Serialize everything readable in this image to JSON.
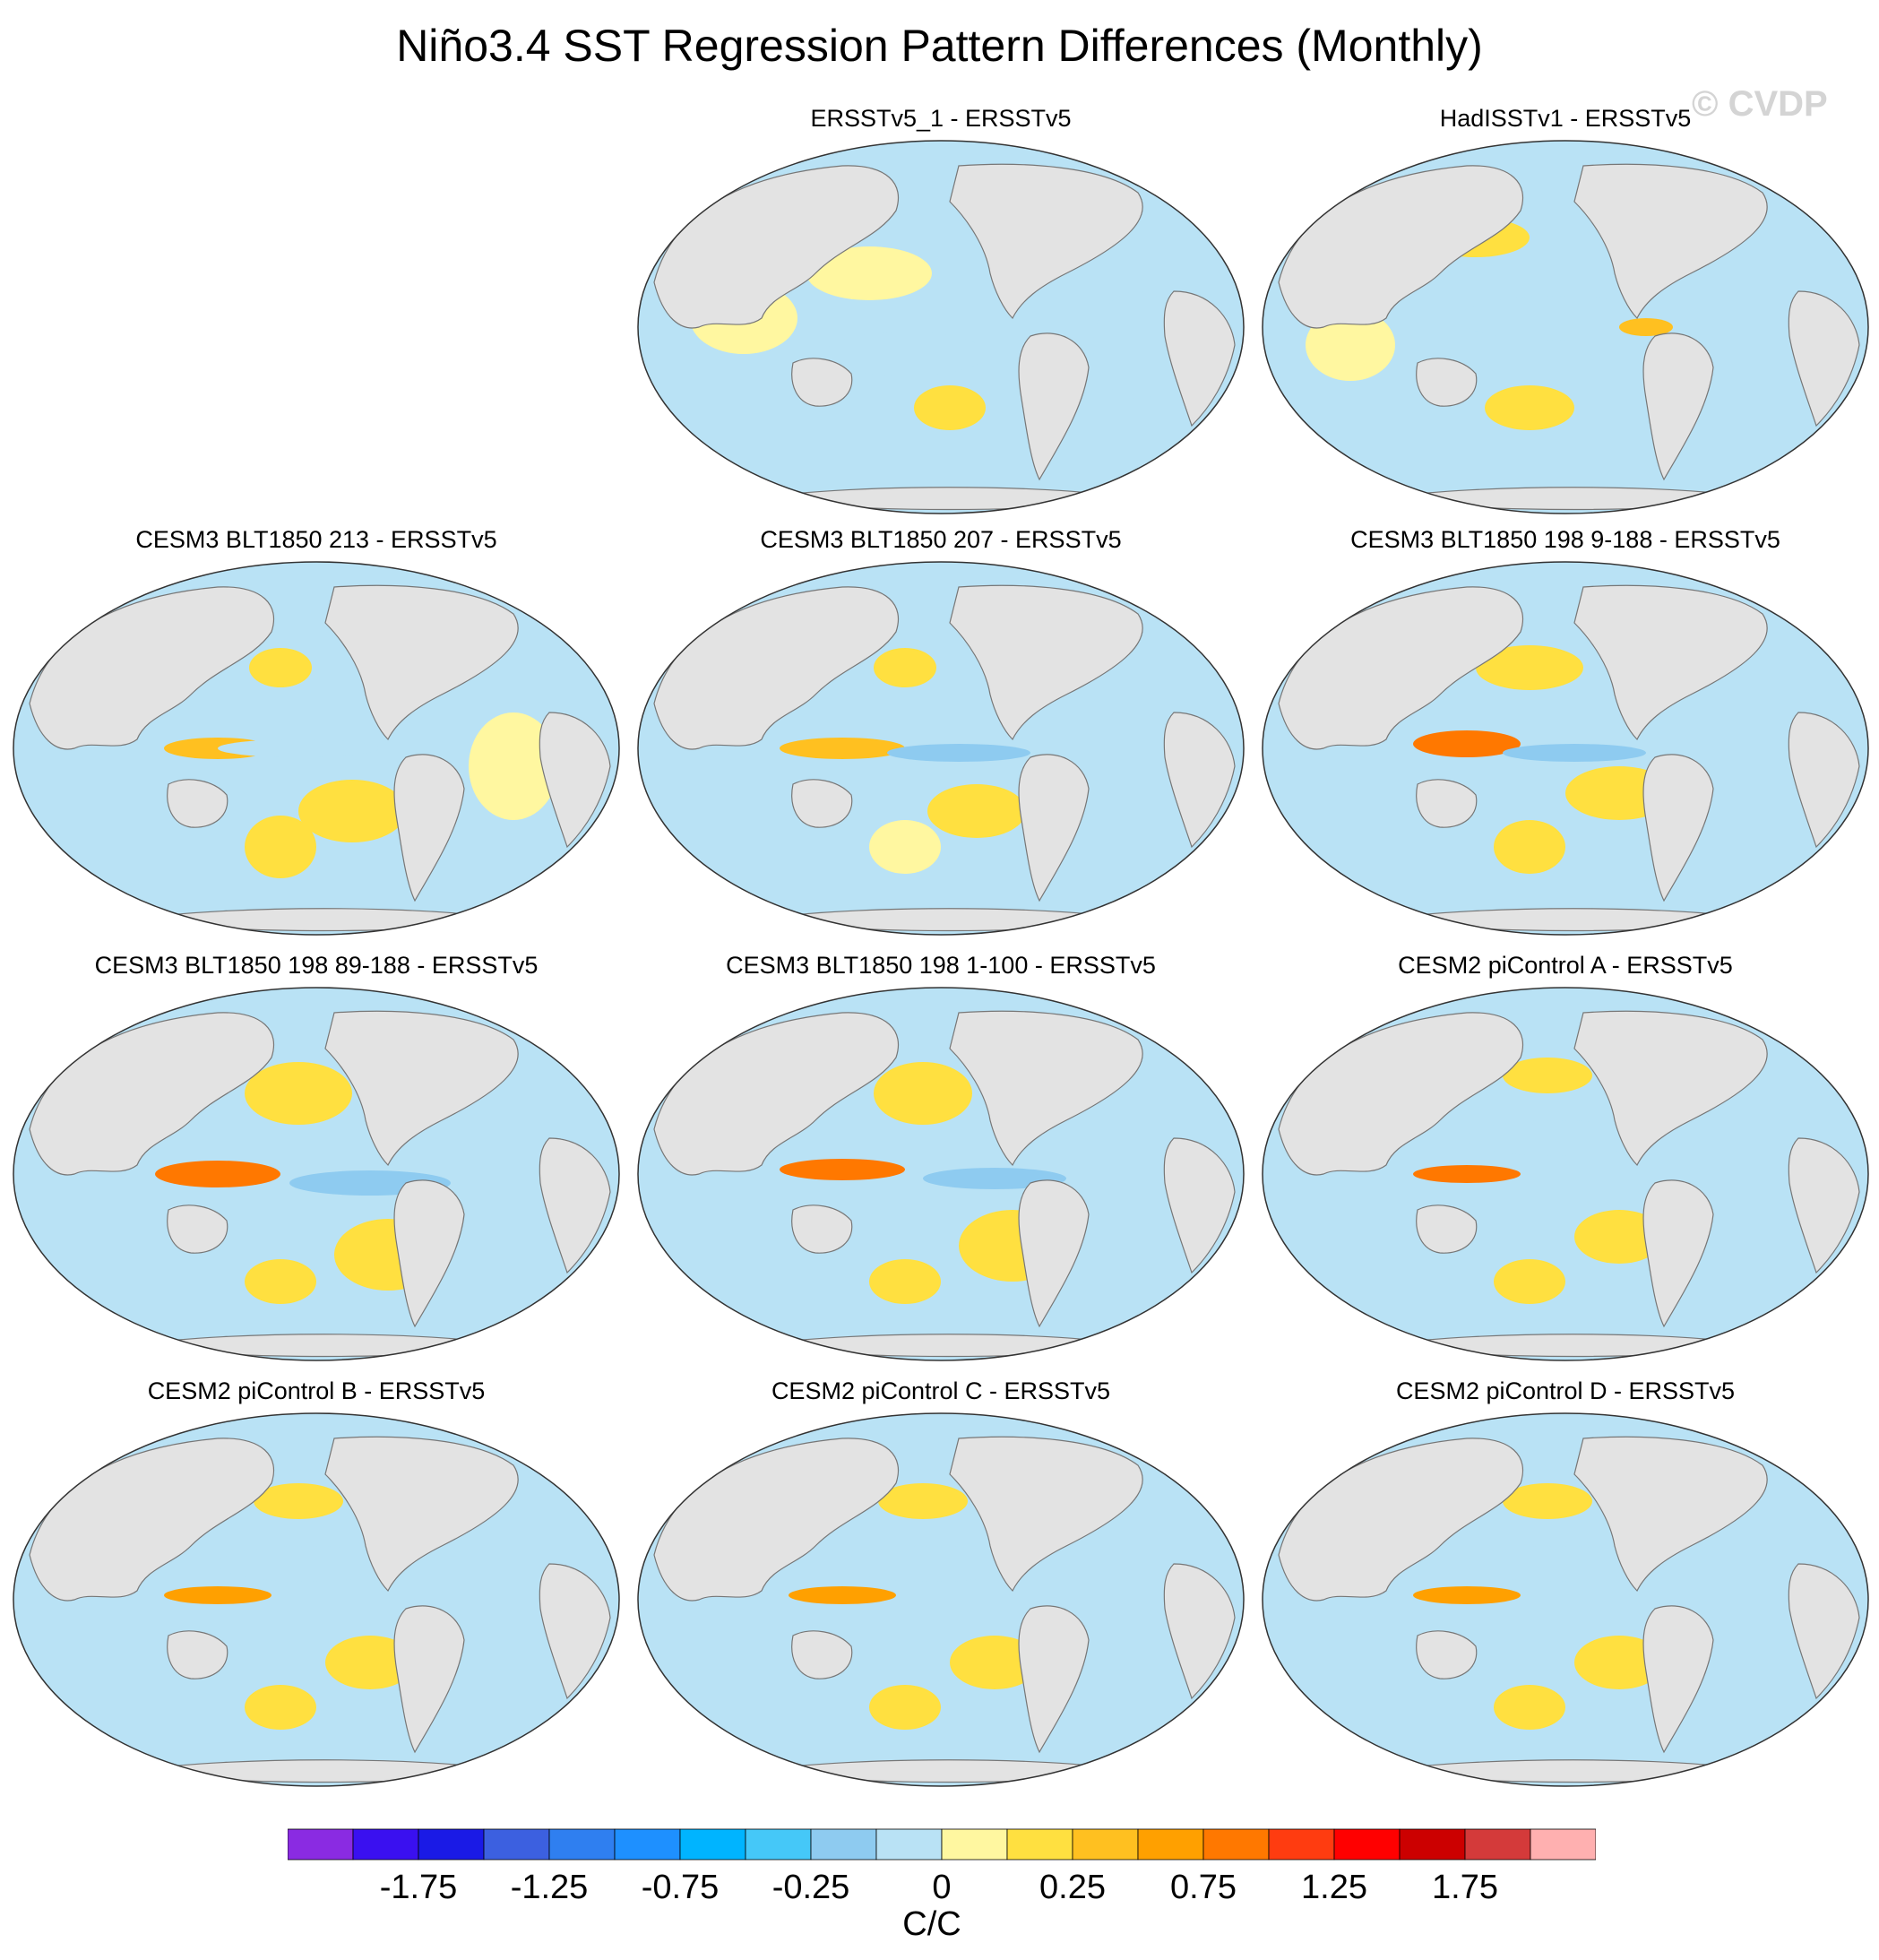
{
  "title": "Niño3.4 SST Regression Pattern Differences (Monthly)",
  "watermark": "© CVDP",
  "panels": [
    {
      "title": "ERSSTv5_1 - ERSSTv5"
    },
    {
      "title": "HadISSTv1 - ERSSTv5"
    },
    {
      "title": "CESM3 BLT1850 213 - ERSSTv5"
    },
    {
      "title": "CESM3 BLT1850 207 - ERSSTv5"
    },
    {
      "title": "CESM3 BLT1850 198 9-188 - ERSSTv5"
    },
    {
      "title": "CESM3 BLT1850 198 89-188 - ERSSTv5"
    },
    {
      "title": "CESM3 BLT1850 198 1-100 - ERSSTv5"
    },
    {
      "title": "CESM2 piControl A - ERSSTv5"
    },
    {
      "title": "CESM2 piControl B - ERSSTv5"
    },
    {
      "title": "CESM2 piControl C - ERSSTv5"
    },
    {
      "title": "CESM2 piControl D - ERSSTv5"
    }
  ],
  "colorbar": {
    "units": "C/C",
    "colors": [
      "#8a2be2",
      "#3a10f0",
      "#1a1ae6",
      "#3c60e0",
      "#2f7ff0",
      "#1e90ff",
      "#00b4ff",
      "#45c8f8",
      "#8ecbf0",
      "#b9e2f5",
      "#fff7a0",
      "#ffe040",
      "#ffc020",
      "#ffa000",
      "#ff7800",
      "#ff3c10",
      "#ff0000",
      "#cc0000",
      "#d43a3a",
      "#ffb0b0"
    ],
    "tick_labels": [
      "-1.75",
      "-1.25",
      "-0.75",
      "-0.25",
      "0",
      "0.25",
      "0.75",
      "1.25",
      "1.75"
    ]
  }
}
